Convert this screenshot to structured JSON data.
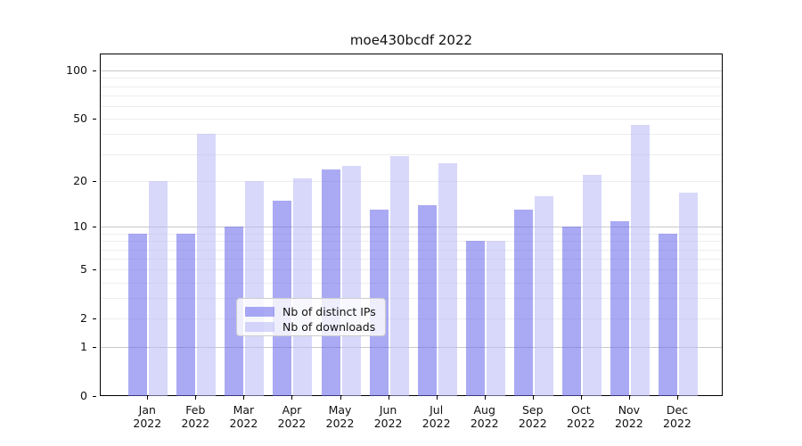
{
  "figure": {
    "title": "moe430bcdf 2022"
  },
  "chart_data": {
    "type": "bar",
    "title": "moe430bcdf 2022",
    "xlabel": "",
    "ylabel": "",
    "yscale": "log1p",
    "grid": true,
    "ytick_labels": [
      0,
      1,
      2,
      5,
      10,
      20,
      50,
      100
    ],
    "ylim": [
      0,
      127
    ],
    "legend_position": "lower center",
    "categories": [
      {
        "month": "Jan",
        "year": "2022"
      },
      {
        "month": "Feb",
        "year": "2022"
      },
      {
        "month": "Mar",
        "year": "2022"
      },
      {
        "month": "Apr",
        "year": "2022"
      },
      {
        "month": "May",
        "year": "2022"
      },
      {
        "month": "Jun",
        "year": "2022"
      },
      {
        "month": "Jul",
        "year": "2022"
      },
      {
        "month": "Aug",
        "year": "2022"
      },
      {
        "month": "Sep",
        "year": "2022"
      },
      {
        "month": "Oct",
        "year": "2022"
      },
      {
        "month": "Nov",
        "year": "2022"
      },
      {
        "month": "Dec",
        "year": "2022"
      }
    ],
    "series": [
      {
        "name": "Nb of distinct IPs",
        "color": "#6464eb",
        "values": [
          9,
          9,
          10,
          15,
          24,
          13,
          14,
          8,
          13,
          10,
          11,
          9
        ]
      },
      {
        "name": "Nb of downloads",
        "color": "#b8b8f6",
        "values": [
          20,
          40,
          20,
          21,
          25,
          29,
          26,
          8,
          16,
          22,
          46,
          17
        ]
      }
    ]
  }
}
